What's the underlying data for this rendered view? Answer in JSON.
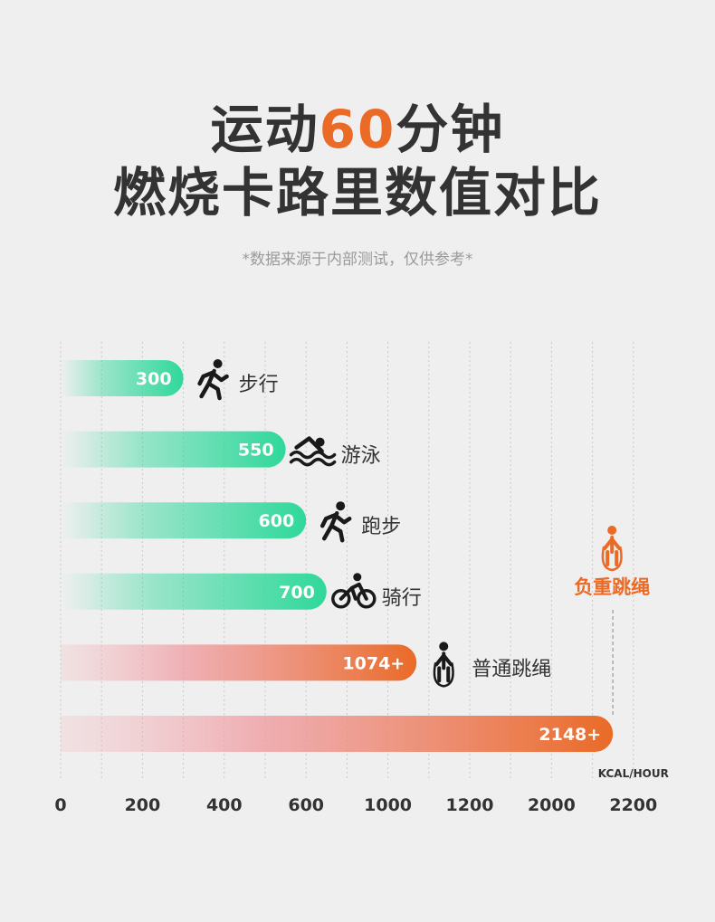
{
  "header": {
    "title_line1_pre": "运动",
    "title_line1_highlight": "60",
    "title_line1_post": "分钟",
    "title_line2": "燃烧卡路里数值对比",
    "subtitle": "*数据来源于内部测试，仅供参考*"
  },
  "colors": {
    "green": "#2fd89b",
    "orange": "#ea6a26",
    "text": "#333333",
    "grid": "#c8c8c8"
  },
  "chart_data": {
    "type": "bar",
    "orientation": "horizontal",
    "unit_label": "KCAL/HOUR",
    "x_ticks": [
      "0",
      "200",
      "400",
      "600",
      "1000",
      "1200",
      "2000",
      "2200"
    ],
    "callout": {
      "label": "负重跳绳",
      "icon": "jump-rope-person-icon"
    },
    "bars": [
      {
        "category": "步行",
        "value": 300,
        "label": "300",
        "color": "green",
        "icon": "walking-icon",
        "tick_pos": 3
      },
      {
        "category": "游泳",
        "value": 550,
        "label": "550",
        "color": "green",
        "icon": "swimming-icon",
        "tick_pos": 5.5
      },
      {
        "category": "跑步",
        "value": 600,
        "label": "600",
        "color": "green",
        "icon": "running-icon",
        "tick_pos": 6
      },
      {
        "category": "骑行",
        "value": 700,
        "label": "700",
        "color": "green",
        "icon": "cycling-icon",
        "tick_pos": 6.5
      },
      {
        "category": "普通跳绳",
        "value": 1074,
        "label": "1074+",
        "color": "orange",
        "icon": "jump-rope-icon",
        "tick_pos": 8.7
      },
      {
        "category": "负重跳绳",
        "value": 2148,
        "label": "2148+",
        "color": "orange",
        "icon": "",
        "tick_pos": 13.5
      }
    ]
  }
}
